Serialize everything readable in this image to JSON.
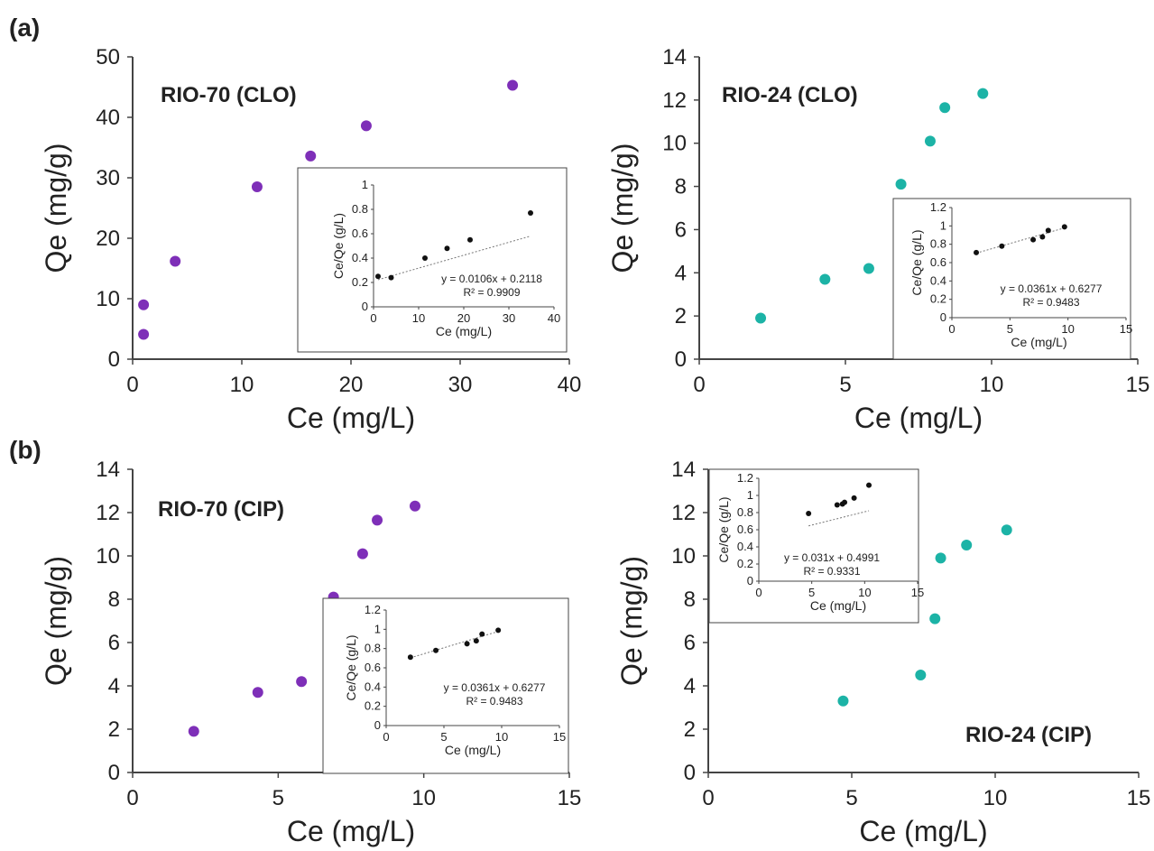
{
  "panel_labels": [
    "(a)",
    "(b)"
  ],
  "colors": {
    "purple": "#7E2FB8",
    "teal": "#1CB3A6",
    "inset_point": "#111111"
  },
  "chart_data": [
    {
      "type": "scatter",
      "title": "RIO-70 (CLO)",
      "xlabel": "Ce (mg/L)",
      "ylabel": "Qe (mg/g)",
      "xlim": [
        0,
        40
      ],
      "ylim": [
        0,
        50
      ],
      "xticks": [
        0,
        10,
        20,
        30,
        40
      ],
      "yticks": [
        0,
        10,
        20,
        30,
        40,
        50
      ],
      "color": "purple",
      "x": [
        1.0,
        1.0,
        3.9,
        11.4,
        16.3,
        21.4,
        34.8
      ],
      "y": [
        4.1,
        9.0,
        16.2,
        28.5,
        33.6,
        38.6,
        45.3
      ],
      "inset": {
        "type": "scatter",
        "xlabel": "Ce (mg/L)",
        "ylabel": "Ce/Qe (g/L)",
        "xlim": [
          0,
          40
        ],
        "ylim": [
          0,
          1
        ],
        "xticks": [
          0,
          10,
          20,
          30,
          40
        ],
        "yticks": [
          0,
          0.2,
          0.4,
          0.6,
          0.8,
          1
        ],
        "x": [
          1.0,
          3.9,
          11.4,
          16.3,
          21.4,
          34.8
        ],
        "y": [
          0.25,
          0.24,
          0.4,
          0.48,
          0.55,
          0.77
        ],
        "fit": {
          "slope": 0.0106,
          "intercept": 0.2118
        },
        "equation": "y = 0.0106x + 0.2118",
        "r2": "R² = 0.9909"
      }
    },
    {
      "type": "scatter",
      "title": "RIO-24 (CLO)",
      "xlabel": "Ce (mg/L)",
      "ylabel": "Qe (mg/g)",
      "xlim": [
        0,
        15
      ],
      "ylim": [
        0,
        14
      ],
      "xticks": [
        0,
        5,
        10,
        15
      ],
      "yticks": [
        0,
        2,
        4,
        6,
        8,
        10,
        12,
        14
      ],
      "color": "teal",
      "x": [
        2.1,
        4.3,
        5.8,
        6.9,
        7.9,
        8.4,
        9.7
      ],
      "y": [
        1.9,
        3.7,
        4.2,
        8.1,
        10.1,
        11.65,
        12.3
      ],
      "inset": {
        "type": "scatter",
        "xlabel": "Ce (mg/L)",
        "ylabel": "Ce/Qe (g/L)",
        "xlim": [
          0,
          15
        ],
        "ylim": [
          0,
          1.2
        ],
        "xticks": [
          0,
          5,
          10,
          15
        ],
        "yticks": [
          0,
          0.2,
          0.4,
          0.6,
          0.8,
          1,
          1.2
        ],
        "x": [
          2.1,
          4.3,
          7.0,
          7.8,
          8.3,
          9.7
        ],
        "y": [
          0.71,
          0.78,
          0.85,
          0.88,
          0.95,
          0.99
        ],
        "fit": {
          "slope": 0.0361,
          "intercept": 0.6277
        },
        "equation": "y = 0.0361x + 0.6277",
        "r2": "R² = 0.9483"
      }
    },
    {
      "type": "scatter",
      "title": "RIO-70 (CIP)",
      "xlabel": "Ce (mg/L)",
      "ylabel": "Qe (mg/g)",
      "xlim": [
        0,
        15
      ],
      "ylim": [
        0,
        14
      ],
      "xticks": [
        0,
        5,
        10,
        15
      ],
      "yticks": [
        0,
        2,
        4,
        6,
        8,
        10,
        12,
        14
      ],
      "color": "purple",
      "x": [
        2.1,
        4.3,
        5.8,
        6.9,
        7.9,
        8.4,
        9.7
      ],
      "y": [
        1.9,
        3.7,
        4.2,
        8.1,
        10.1,
        11.65,
        12.3
      ],
      "inset": {
        "type": "scatter",
        "xlabel": "Ce (mg/L)",
        "ylabel": "Ce/Qe (g/L)",
        "xlim": [
          0,
          15
        ],
        "ylim": [
          0,
          1.2
        ],
        "xticks": [
          0,
          5,
          10,
          15
        ],
        "yticks": [
          0,
          0.2,
          0.4,
          0.6,
          0.8,
          1,
          1.2
        ],
        "x": [
          2.1,
          4.3,
          7.0,
          7.8,
          8.3,
          9.7
        ],
        "y": [
          0.71,
          0.78,
          0.85,
          0.88,
          0.95,
          0.99
        ],
        "fit": {
          "slope": 0.0361,
          "intercept": 0.6277
        },
        "equation": "y = 0.0361x + 0.6277",
        "r2": "R² = 0.9483"
      }
    },
    {
      "type": "scatter",
      "title": "RIO-24 (CIP)",
      "xlabel": "Ce (mg/L)",
      "ylabel": "Qe (mg/g)",
      "xlim": [
        0,
        15
      ],
      "ylim": [
        0,
        14
      ],
      "xticks": [
        0,
        5,
        10,
        15
      ],
      "yticks": [
        0,
        2,
        4,
        6,
        8,
        10,
        12,
        14
      ],
      "color": "teal",
      "x": [
        4.7,
        7.4,
        7.9,
        8.1,
        9.0,
        10.4
      ],
      "y": [
        3.3,
        4.5,
        7.1,
        9.9,
        10.5,
        11.2
      ],
      "inset": {
        "type": "scatter",
        "xlabel": "Ce (mg/L)",
        "ylabel": "Ce/Qe (g/L)",
        "xlim": [
          0,
          15
        ],
        "ylim": [
          0,
          1.2
        ],
        "xticks": [
          0,
          5,
          10,
          15
        ],
        "yticks": [
          0,
          0.2,
          0.4,
          0.6,
          0.8,
          1,
          1.2
        ],
        "x": [
          4.7,
          7.4,
          7.9,
          8.1,
          9.0,
          10.4
        ],
        "y": [
          0.79,
          0.89,
          0.9,
          0.92,
          0.97,
          1.12
        ],
        "fit": {
          "slope": 0.031,
          "intercept": 0.4991
        },
        "equation": "y = 0.031x + 0.4991",
        "r2": "R² = 0.9331"
      }
    }
  ]
}
